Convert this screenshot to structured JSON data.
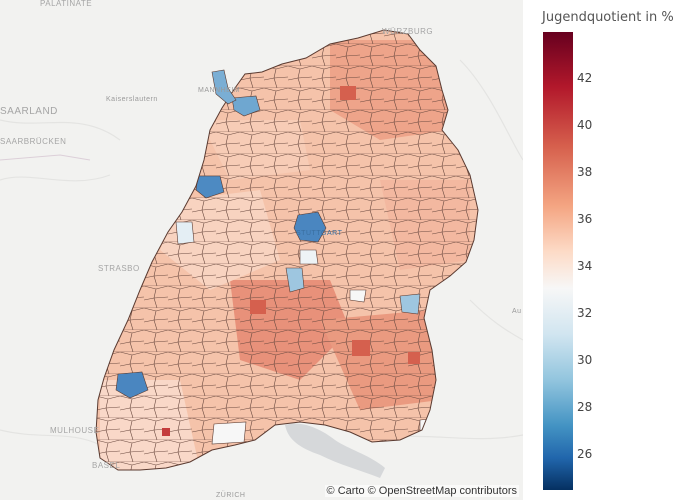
{
  "map": {
    "attribution": "© Carto © OpenStreetMap contributors",
    "region": "Baden-Württemberg municipalities",
    "basemap_labels": [
      {
        "text": "PALATINATE",
        "big": true
      },
      {
        "text": "WÜRZBURG",
        "big": true
      },
      {
        "text": "MANNHEIM",
        "big": false
      },
      {
        "text": "Kaiserslautern",
        "big": false
      },
      {
        "text": "SAARLAND",
        "big": true
      },
      {
        "text": "SAARBRÜCKEN",
        "big": true
      },
      {
        "text": "STRASBO",
        "big": true
      },
      {
        "text": "STUTTGART",
        "big": false
      },
      {
        "text": "MULHOUSE",
        "big": true
      },
      {
        "text": "BASEL",
        "big": true
      },
      {
        "text": "ZÜRICH",
        "big": false
      },
      {
        "text": "Au",
        "big": false
      }
    ]
  },
  "colorbar": {
    "title": "Jugendquotient in %",
    "ticks": [
      "42",
      "40",
      "38",
      "36",
      "34",
      "32",
      "30",
      "28",
      "26"
    ],
    "range": [
      24.5,
      44
    ],
    "colorscale": "RdBu (reversed)",
    "colors": {
      "high": "#67001f",
      "mid": "#f7f7f7",
      "low": "#053061",
      "border": "#5a3a30"
    }
  }
}
